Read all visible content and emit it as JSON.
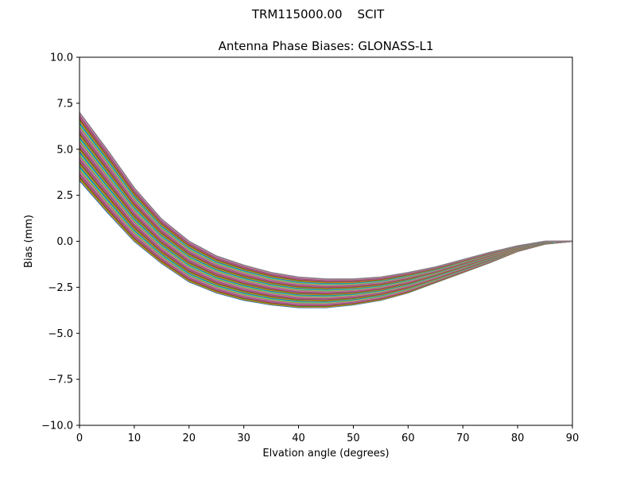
{
  "figure": {
    "suptitle": "TRM115000.00    SCIT"
  },
  "chart_data": {
    "type": "line",
    "title": "Antenna Phase Biases: GLONASS-L1",
    "xlabel": "Elvation angle (degrees)",
    "ylabel": "Bias (mm)",
    "xlim": [
      0,
      90
    ],
    "ylim": [
      -10,
      10
    ],
    "xticks": [
      0,
      10,
      20,
      30,
      40,
      50,
      60,
      70,
      80,
      90
    ],
    "xtick_labels": [
      "0",
      "10",
      "20",
      "30",
      "40",
      "50",
      "60",
      "70",
      "80",
      "90"
    ],
    "yticks": [
      -10,
      -7.5,
      -5,
      -2.5,
      0,
      2.5,
      5,
      7.5,
      10
    ],
    "ytick_labels": [
      "−10.0",
      "−7.5",
      "−5.0",
      "−2.5",
      "0.0",
      "2.5",
      "5.0",
      "7.5",
      "10.0"
    ],
    "grid": false,
    "legend": "none",
    "x": [
      0,
      5,
      10,
      15,
      20,
      25,
      30,
      35,
      40,
      45,
      50,
      55,
      60,
      65,
      70,
      75,
      80,
      85,
      90
    ],
    "series_envelope": {
      "upper": [
        7.0,
        5.0,
        2.9,
        1.2,
        0.0,
        -0.8,
        -1.3,
        -1.7,
        -1.95,
        -2.05,
        -2.05,
        -1.95,
        -1.7,
        -1.4,
        -1.0,
        -0.6,
        -0.25,
        0.0,
        0.0
      ],
      "lower": [
        3.3,
        1.6,
        0.0,
        -1.2,
        -2.2,
        -2.8,
        -3.2,
        -3.45,
        -3.6,
        -3.6,
        -3.45,
        -3.2,
        -2.8,
        -2.25,
        -1.7,
        -1.15,
        -0.55,
        -0.15,
        0.0
      ]
    },
    "series_count": 48,
    "series_colors": [
      "#1f77b4",
      "#ff7f0e",
      "#2ca02c",
      "#d62728",
      "#9467bd",
      "#8c564b",
      "#e377c2",
      "#7f7f7f",
      "#bcbd22",
      "#17becf"
    ]
  }
}
